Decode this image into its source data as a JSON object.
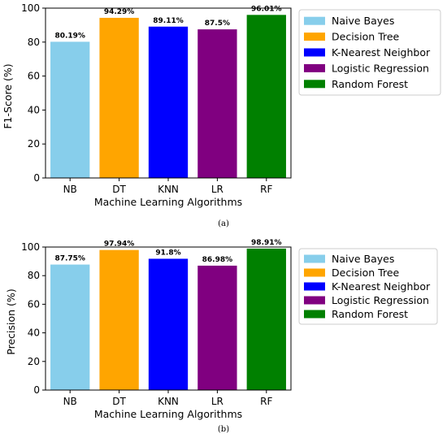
{
  "colors": {
    "nb": "#87CEEB",
    "dt": "#FFA500",
    "knn": "#0000FF",
    "lr": "#800080",
    "rf": "#008000"
  },
  "chart_data": [
    {
      "type": "bar",
      "caption": "(a)",
      "categories": [
        "NB",
        "DT",
        "KNN",
        "LR",
        "RF"
      ],
      "values": [
        80.19,
        94.29,
        89.11,
        87.5,
        96.01
      ],
      "data_labels": [
        "80.19%",
        "94.29%",
        "89.11%",
        "87.5%",
        "96.01%"
      ],
      "xlabel": "Machine Learning Algorithms",
      "ylabel": "F1-Score (%)",
      "ylim": [
        0,
        100
      ],
      "yticks": [
        0,
        20,
        40,
        60,
        80,
        100
      ],
      "legend_position": "outside-right-top",
      "legend": [
        "Naive Bayes",
        "Decision Tree",
        "K-Nearest Neighbor",
        "Logistic Regression",
        "Random Forest"
      ]
    },
    {
      "type": "bar",
      "caption": "(b)",
      "categories": [
        "NB",
        "DT",
        "KNN",
        "LR",
        "RF"
      ],
      "values": [
        87.75,
        97.94,
        91.8,
        86.98,
        98.91
      ],
      "data_labels": [
        "87.75%",
        "97.94%",
        "91.8%",
        "86.98%",
        "98.91%"
      ],
      "xlabel": "Machine Learning Algorithms",
      "ylabel": "Precision (%)",
      "ylim": [
        0,
        100
      ],
      "yticks": [
        0,
        20,
        40,
        60,
        80,
        100
      ],
      "legend_position": "outside-right-top",
      "legend": [
        "Naive Bayes",
        "Decision Tree",
        "K-Nearest Neighbor",
        "Logistic Regression",
        "Random Forest"
      ]
    }
  ]
}
